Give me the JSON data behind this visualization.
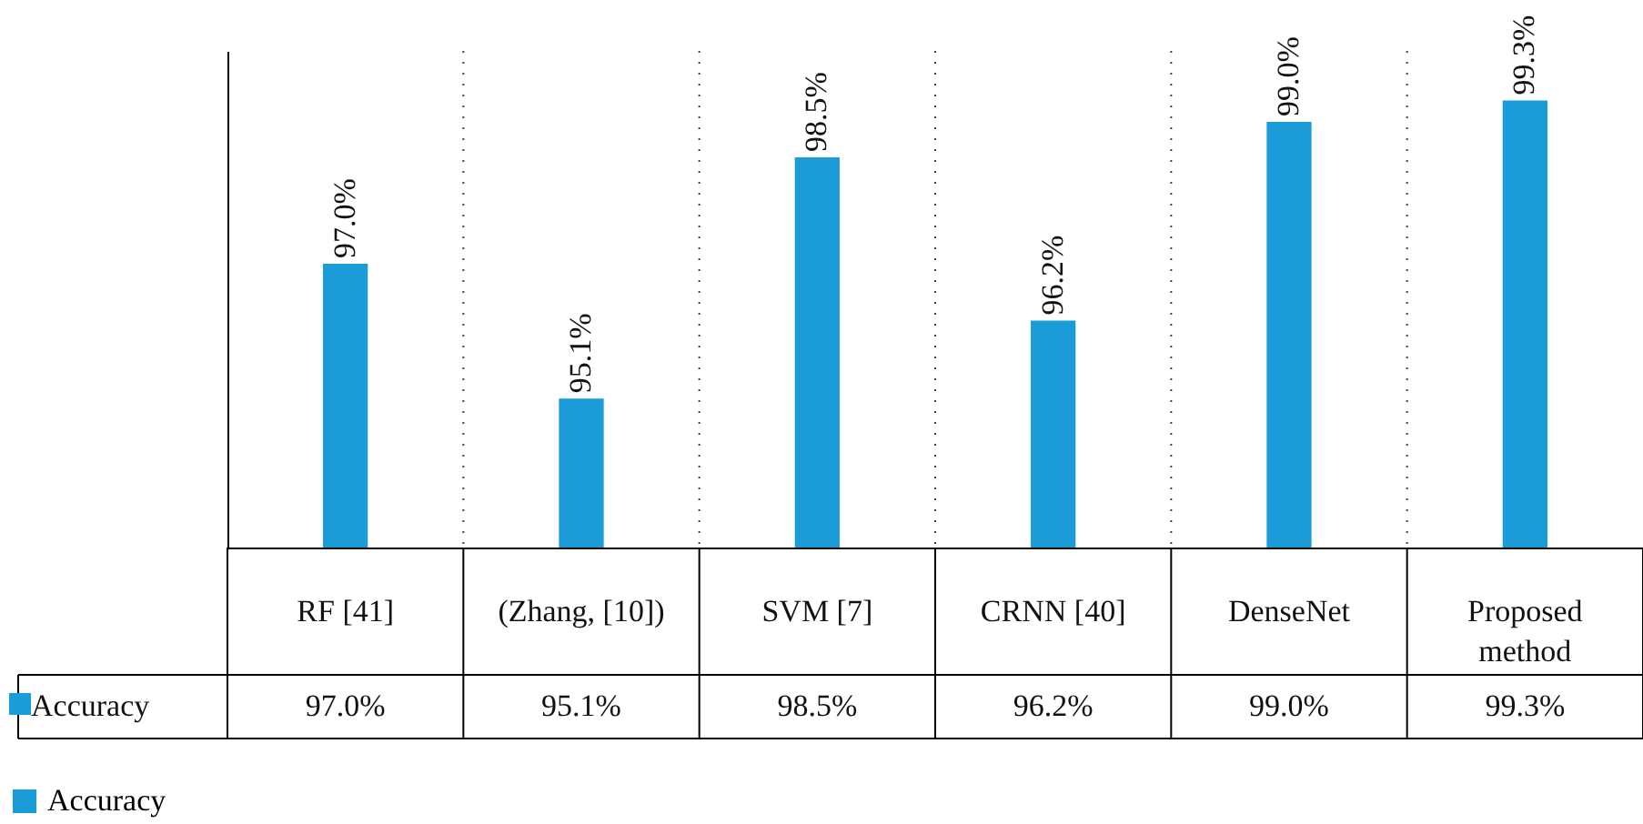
{
  "chart_data": {
    "type": "bar",
    "categories": [
      "RF [41]",
      "(Zhang, [10])",
      "SVM [7]",
      "CRNN [40]",
      "DenseNet",
      "Proposed method"
    ],
    "series": [
      {
        "name": "Accuracy",
        "color": "#1b9cd8",
        "values": [
          97.0,
          95.1,
          98.5,
          96.2,
          99.0,
          99.3
        ],
        "value_labels": [
          "97.0%",
          "95.1%",
          "98.5%",
          "96.2%",
          "99.0%",
          "99.3%"
        ]
      }
    ],
    "ylim": [
      93,
      100
    ],
    "grid": "x",
    "legend": "bottom left"
  }
}
